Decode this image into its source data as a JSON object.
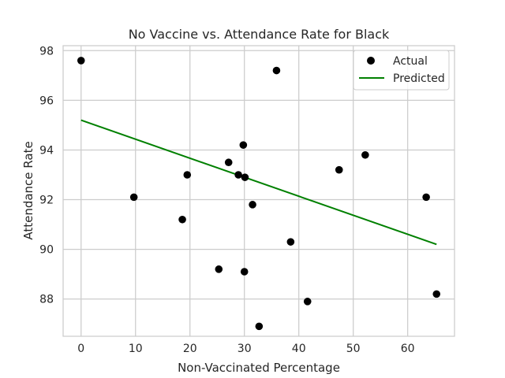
{
  "chart_data": {
    "type": "scatter",
    "title": "No Vaccine vs. Attendance Rate for Black",
    "xlabel": "Non-Vaccinated Percentage",
    "ylabel": "Attendance Rate",
    "xlim": [
      -3.3,
      68.6
    ],
    "ylim": [
      86.5,
      98.2
    ],
    "xticks": [
      0,
      10,
      20,
      30,
      40,
      50,
      60
    ],
    "yticks": [
      88,
      90,
      92,
      94,
      96,
      98
    ],
    "grid": true,
    "legend_position": "top-right",
    "series": [
      {
        "name": "Actual",
        "kind": "scatter",
        "color": "#000000",
        "points": [
          {
            "x": 0.0,
            "y": 97.6
          },
          {
            "x": 9.7,
            "y": 92.1
          },
          {
            "x": 18.6,
            "y": 91.2
          },
          {
            "x": 19.5,
            "y": 93.0
          },
          {
            "x": 25.3,
            "y": 89.2
          },
          {
            "x": 27.1,
            "y": 93.5
          },
          {
            "x": 28.9,
            "y": 93.0
          },
          {
            "x": 29.8,
            "y": 94.2
          },
          {
            "x": 30.0,
            "y": 89.1
          },
          {
            "x": 30.1,
            "y": 92.9
          },
          {
            "x": 31.5,
            "y": 91.8
          },
          {
            "x": 32.7,
            "y": 86.9
          },
          {
            "x": 35.9,
            "y": 97.2
          },
          {
            "x": 38.5,
            "y": 90.3
          },
          {
            "x": 41.6,
            "y": 87.9
          },
          {
            "x": 47.4,
            "y": 93.2
          },
          {
            "x": 52.2,
            "y": 93.8
          },
          {
            "x": 63.4,
            "y": 92.1
          },
          {
            "x": 65.3,
            "y": 88.2
          }
        ]
      },
      {
        "name": "Predicted",
        "kind": "line",
        "color": "#008000",
        "points": [
          {
            "x": 0.0,
            "y": 95.2
          },
          {
            "x": 65.3,
            "y": 90.2
          }
        ]
      }
    ]
  }
}
